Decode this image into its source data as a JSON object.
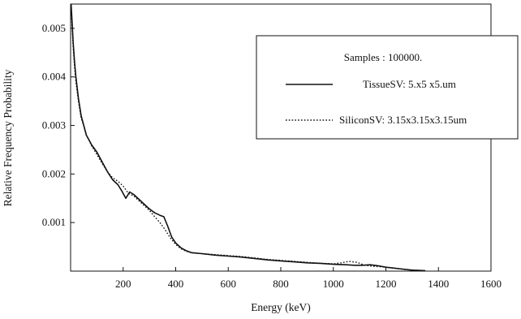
{
  "chart_data": {
    "type": "line",
    "xlabel": "Energy (keV)",
    "ylabel": "Relative Frequency Probability",
    "xlim": [
      0,
      1600
    ],
    "ylim": [
      0,
      0.0055
    ],
    "x_ticks": [
      {
        "value": 200,
        "label": "200"
      },
      {
        "value": 400,
        "label": "400"
      },
      {
        "value": 600,
        "label": "600"
      },
      {
        "value": 800,
        "label": "800"
      },
      {
        "value": 1000,
        "label": "1000"
      },
      {
        "value": 1200,
        "label": "1200"
      },
      {
        "value": 1400,
        "label": "1400"
      },
      {
        "value": 1600,
        "label": "1600"
      }
    ],
    "y_ticks": [
      {
        "value": 0.001,
        "label": "0.001"
      },
      {
        "value": 0.002,
        "label": "0.002"
      },
      {
        "value": 0.003,
        "label": "0.003"
      },
      {
        "value": 0.004,
        "label": "0.004"
      },
      {
        "value": 0.005,
        "label": "0.005"
      }
    ],
    "grid": false,
    "legend": {
      "position": "top-right",
      "title": "Samples : 100000.",
      "entries": [
        {
          "label": "TissueSV: 5.x5 x5.um",
          "style": "solid"
        },
        {
          "label": "SiliconSV: 3.15x3.15x3.15um",
          "style": "dotted"
        }
      ]
    },
    "series": [
      {
        "name": "TissueSV: 5.x5 x5.um",
        "style": "solid",
        "color": "#111111",
        "x": [
          2,
          5,
          10,
          15,
          20,
          30,
          40,
          50,
          60,
          70,
          80,
          100,
          120,
          140,
          160,
          180,
          195,
          210,
          225,
          240,
          260,
          280,
          300,
          320,
          340,
          355,
          370,
          385,
          400,
          420,
          440,
          460,
          500,
          550,
          600,
          650,
          700,
          750,
          800,
          850,
          900,
          950,
          1000,
          1050,
          1080,
          1110,
          1140,
          1170,
          1200,
          1250,
          1300,
          1350
        ],
        "y": [
          0.0055,
          0.0052,
          0.0047,
          0.0043,
          0.004,
          0.00355,
          0.0032,
          0.003,
          0.0028,
          0.0027,
          0.0026,
          0.00245,
          0.00225,
          0.00205,
          0.00188,
          0.00178,
          0.00165,
          0.0015,
          0.00163,
          0.00158,
          0.00148,
          0.00138,
          0.00128,
          0.0012,
          0.00115,
          0.00112,
          0.00092,
          0.0007,
          0.00058,
          0.00048,
          0.00042,
          0.00038,
          0.00036,
          0.00033,
          0.00031,
          0.00029,
          0.00026,
          0.00023,
          0.00021,
          0.00019,
          0.00017,
          0.00016,
          0.00014,
          0.00013,
          0.00012,
          0.00012,
          0.00013,
          0.00011,
          8e-05,
          5e-05,
          2e-05,
          1e-05
        ]
      },
      {
        "name": "SiliconSV: 3.15x3.15x3.15um",
        "style": "dotted",
        "color": "#111111",
        "x": [
          2,
          5,
          10,
          15,
          20,
          30,
          40,
          50,
          60,
          70,
          80,
          100,
          120,
          140,
          160,
          180,
          200,
          220,
          240,
          260,
          280,
          300,
          320,
          340,
          360,
          380,
          400,
          420,
          440,
          460,
          500,
          550,
          600,
          650,
          700,
          750,
          800,
          850,
          900,
          950,
          1000,
          1030,
          1060,
          1090,
          1120,
          1150,
          1180,
          1220,
          1260,
          1300,
          1350
        ],
        "y": [
          0.0054,
          0.0051,
          0.0046,
          0.0042,
          0.0039,
          0.0035,
          0.00315,
          0.003,
          0.0028,
          0.0027,
          0.00258,
          0.0024,
          0.00222,
          0.00205,
          0.00192,
          0.00185,
          0.00175,
          0.0016,
          0.00155,
          0.00145,
          0.00135,
          0.00125,
          0.00112,
          0.001,
          0.00085,
          0.00068,
          0.00055,
          0.00046,
          0.00041,
          0.00038,
          0.00036,
          0.00034,
          0.00032,
          0.0003,
          0.00027,
          0.00024,
          0.00022,
          0.0002,
          0.00018,
          0.00016,
          0.00015,
          0.00017,
          0.0002,
          0.00018,
          0.00012,
          0.0001,
          9e-05,
          7e-05,
          4e-05,
          2e-05,
          1e-05
        ]
      }
    ]
  }
}
